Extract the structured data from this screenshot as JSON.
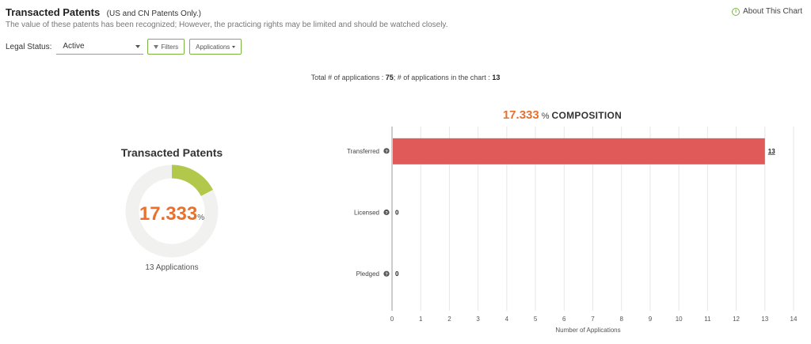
{
  "header": {
    "title": "Transacted Patents",
    "title_note": "(US and CN Patents Only.)",
    "description": "The value of these patents has been recognized; However, the practicing rights may be limited and should be watched closely.",
    "about_label": "About This Chart"
  },
  "filters": {
    "legal_status_label": "Legal Status:",
    "legal_status_value": "Active",
    "filters_button": "Filters",
    "applications_button": "Applications"
  },
  "totals": {
    "prefix": "Total # of applications : ",
    "total": "75",
    "middle": "; # of applications in the chart : ",
    "in_chart": "13"
  },
  "donut": {
    "title": "Transacted Patents",
    "value": "17.333",
    "unit": "%",
    "caption": "13 Applications",
    "fraction": 0.17333,
    "fill_color": "#b2c84a",
    "track_color": "#f1f2ef"
  },
  "composition": {
    "value": "17.333",
    "unit": "%",
    "label": "COMPOSITION"
  },
  "chart_data": {
    "type": "bar",
    "orientation": "horizontal",
    "categories": [
      "Transferred",
      "Licensed",
      "Pledged"
    ],
    "values": [
      13,
      0,
      0
    ],
    "xlabel": "Number of Applications",
    "xlim": [
      0,
      14
    ],
    "xticks": [
      0,
      1,
      2,
      3,
      4,
      5,
      6,
      7,
      8,
      9,
      10,
      11,
      12,
      13,
      14
    ],
    "bar_color": "#e05a5a",
    "grid": true
  },
  "colors": {
    "accent_orange": "#e8712d",
    "accent_green": "#7cb342"
  }
}
